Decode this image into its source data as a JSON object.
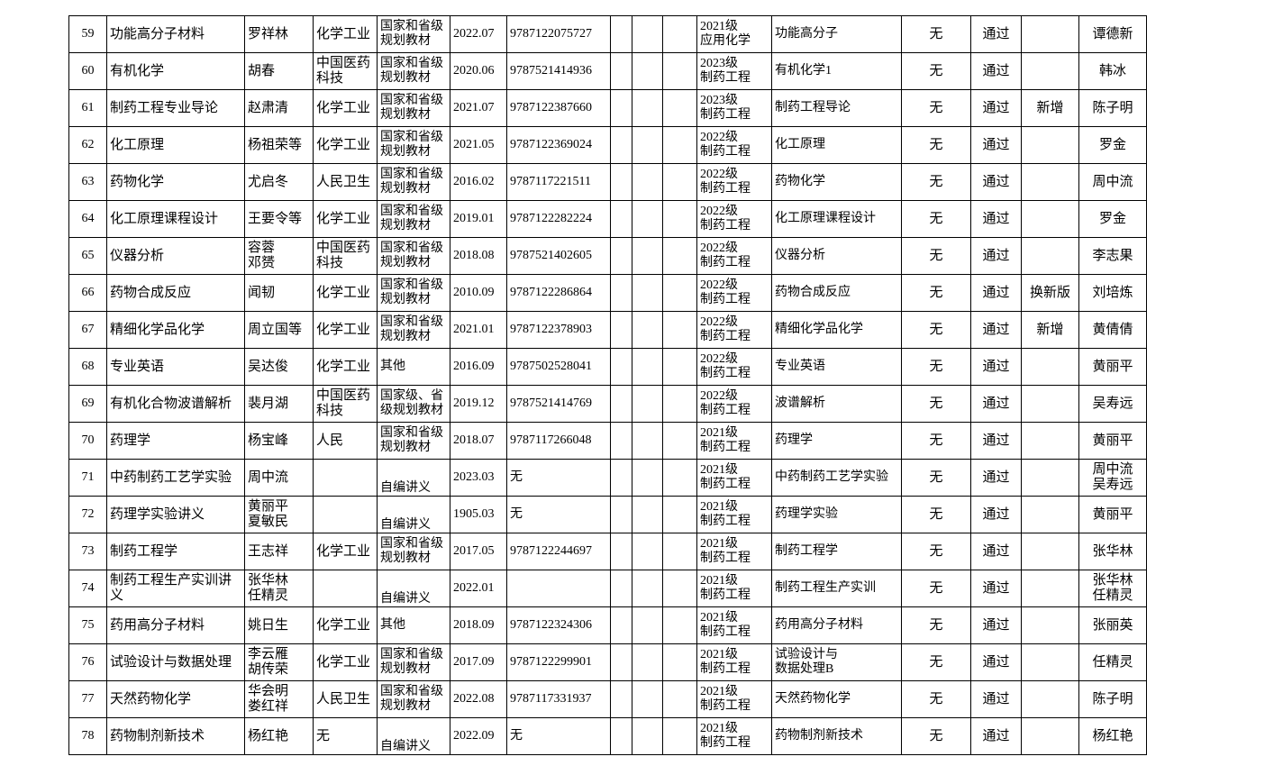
{
  "table": {
    "rows": [
      {
        "no": "59",
        "name": "功能高分子材料",
        "author": "罗祥林",
        "publisher": "化学工业",
        "kind": "国家和省级\n规划教材",
        "date": "2022.07",
        "isbn": "9787122075727",
        "grade": "2021级\n应用化学",
        "course": "功能高分子",
        "exam": "无",
        "status": "通过",
        "teacher": "谭德新"
      },
      {
        "no": "60",
        "name": "有机化学",
        "author": "胡春",
        "publisher": "中国医药\n科技",
        "kind": "国家和省级\n规划教材",
        "date": "2020.06",
        "isbn": "9787521414936",
        "grade": "2023级\n制药工程",
        "course": "有机化学1",
        "exam": "无",
        "status": "通过",
        "teacher": "韩冰"
      },
      {
        "no": "61",
        "name": "制药工程专业导论",
        "author": "赵肃清",
        "publisher": "化学工业",
        "kind": "国家和省级\n规划教材",
        "date": "2021.07",
        "isbn": "9787122387660",
        "grade": "2023级\n制药工程",
        "course": "制药工程导论",
        "exam": "无",
        "status": "通过",
        "note": "新增",
        "teacher": "陈子明"
      },
      {
        "no": "62",
        "name": "化工原理",
        "author": "杨祖荣等",
        "publisher": "化学工业",
        "kind": "国家和省级\n规划教材",
        "date": "2021.05",
        "isbn": "9787122369024",
        "grade": "2022级\n制药工程",
        "course": "化工原理",
        "exam": "无",
        "status": "通过",
        "teacher": "罗金"
      },
      {
        "no": "63",
        "name": "药物化学",
        "author": "尤启冬",
        "publisher": "人民卫生",
        "kind": "国家和省级\n规划教材",
        "date": "2016.02",
        "isbn": "9787117221511",
        "grade": "2022级\n制药工程",
        "course": "药物化学",
        "exam": "无",
        "status": "通过",
        "teacher": "周中流"
      },
      {
        "no": "64",
        "name": "化工原理课程设计",
        "author": "王要令等",
        "publisher": "化学工业",
        "kind": "国家和省级\n规划教材",
        "date": "2019.01",
        "isbn": "9787122282224",
        "grade": "2022级\n制药工程",
        "course": "化工原理课程设计",
        "exam": "无",
        "status": "通过",
        "teacher": "罗金"
      },
      {
        "no": "65",
        "name": "仪器分析",
        "author": "容蓉\n邓赟",
        "publisher": "中国医药\n科技",
        "kind": "国家和省级\n规划教材",
        "date": "2018.08",
        "isbn": "9787521402605",
        "grade": "2022级\n制药工程",
        "course": "仪器分析",
        "exam": "无",
        "status": "通过",
        "teacher": "李志果"
      },
      {
        "no": "66",
        "name": "药物合成反应",
        "author": "闻韧",
        "publisher": "化学工业",
        "kind": "国家和省级\n规划教材",
        "date": "2010.09",
        "isbn": "9787122286864",
        "grade": "2022级\n制药工程",
        "course": "药物合成反应",
        "exam": "无",
        "status": "通过",
        "note": "换新版",
        "teacher": "刘培炼"
      },
      {
        "no": "67",
        "name": "精细化学品化学",
        "author": "周立国等",
        "publisher": "化学工业",
        "kind": "国家和省级\n规划教材",
        "date": "2021.01",
        "isbn": "9787122378903",
        "grade": "2022级\n制药工程",
        "course": "精细化学品化学",
        "exam": "无",
        "status": "通过",
        "note": "新增",
        "teacher": "黄倩倩"
      },
      {
        "no": "68",
        "name": "专业英语",
        "author": "吴达俊",
        "publisher": "化学工业",
        "kind": "其他",
        "date": "2016.09",
        "isbn": "9787502528041",
        "grade": "2022级\n制药工程",
        "course": "专业英语",
        "exam": "无",
        "status": "通过",
        "teacher": "黄丽平"
      },
      {
        "no": "69",
        "name": "有机化合物波谱解析",
        "author": "裴月湖",
        "publisher": "中国医药\n科技",
        "kind": "国家级、省\n级规划教材",
        "date": "2019.12",
        "isbn": "9787521414769",
        "grade": "2022级\n制药工程",
        "course": "波谱解析",
        "exam": "无",
        "status": "通过",
        "teacher": "吴寿远"
      },
      {
        "no": "70",
        "name": "药理学",
        "author": "杨宝峰",
        "publisher": "人民",
        "kind": "国家和省级\n规划教材",
        "date": "2018.07",
        "isbn": "9787117266048",
        "grade": "2021级\n制药工程",
        "course": "药理学",
        "exam": "无",
        "status": "通过",
        "teacher": "黄丽平"
      },
      {
        "no": "71",
        "name": "中药制药工艺学实验",
        "author": "周中流",
        "kind": "自编讲义",
        "date": "2023.03",
        "isbn": "无",
        "grade": "2021级\n制药工程",
        "course": "中药制药工艺学实验",
        "exam": "无",
        "status": "通过",
        "teacher": "周中流\n吴寿远"
      },
      {
        "no": "72",
        "name": "药理学实验讲义",
        "author": "黄丽平\n夏敏民",
        "kind": "自编讲义",
        "date": "1905.03",
        "isbn": "无",
        "grade": "2021级\n制药工程",
        "course": "药理学实验",
        "exam": "无",
        "status": "通过",
        "teacher": "黄丽平"
      },
      {
        "no": "73",
        "name": "制药工程学",
        "author": "王志祥",
        "publisher": "化学工业",
        "kind": "国家和省级\n规划教材",
        "date": "2017.05",
        "isbn": "9787122244697",
        "grade": "2021级\n制药工程",
        "course": "制药工程学",
        "exam": "无",
        "status": "通过",
        "teacher": "张华林"
      },
      {
        "no": "74",
        "name": "制药工程生产实训讲义",
        "author": "张华林\n任精灵",
        "kind": "自编讲义",
        "date": "2022.01",
        "grade": "2021级\n制药工程",
        "course": "制药工程生产实训",
        "exam": "无",
        "status": "通过",
        "teacher": "张华林\n任精灵"
      },
      {
        "no": "75",
        "name": "药用高分子材料",
        "author": "姚日生",
        "publisher": "化学工业",
        "kind": "其他",
        "date": "2018.09",
        "isbn": "9787122324306",
        "grade": "2021级\n制药工程",
        "course": "药用高分子材料",
        "exam": "无",
        "status": "通过",
        "teacher": "张丽英"
      },
      {
        "no": "76",
        "name": "试验设计与数据处理",
        "author": "李云雁\n胡传荣",
        "publisher": "化学工业",
        "kind": "国家和省级\n规划教材",
        "date": "2017.09",
        "isbn": "9787122299901",
        "grade": "2021级\n制药工程",
        "course": "试验设计与\n数据处理B",
        "exam": "无",
        "status": "通过",
        "teacher": "任精灵"
      },
      {
        "no": "77",
        "name": "天然药物化学",
        "author": "华会明\n娄红祥",
        "publisher": "人民卫生",
        "kind": "国家和省级\n规划教材",
        "date": "2022.08",
        "isbn": "9787117331937",
        "grade": "2021级\n制药工程",
        "course": "天然药物化学",
        "exam": "无",
        "status": "通过",
        "teacher": "陈子明"
      },
      {
        "no": "78",
        "name": "药物制剂新技术",
        "author": "杨红艳",
        "publisher": "无",
        "kind": "自编讲义",
        "date": "2022.09",
        "isbn": "无",
        "grade": "2021级\n制药工程",
        "course": "药物制剂新技术",
        "exam": "无",
        "status": "通过",
        "teacher": "杨红艳"
      }
    ]
  }
}
